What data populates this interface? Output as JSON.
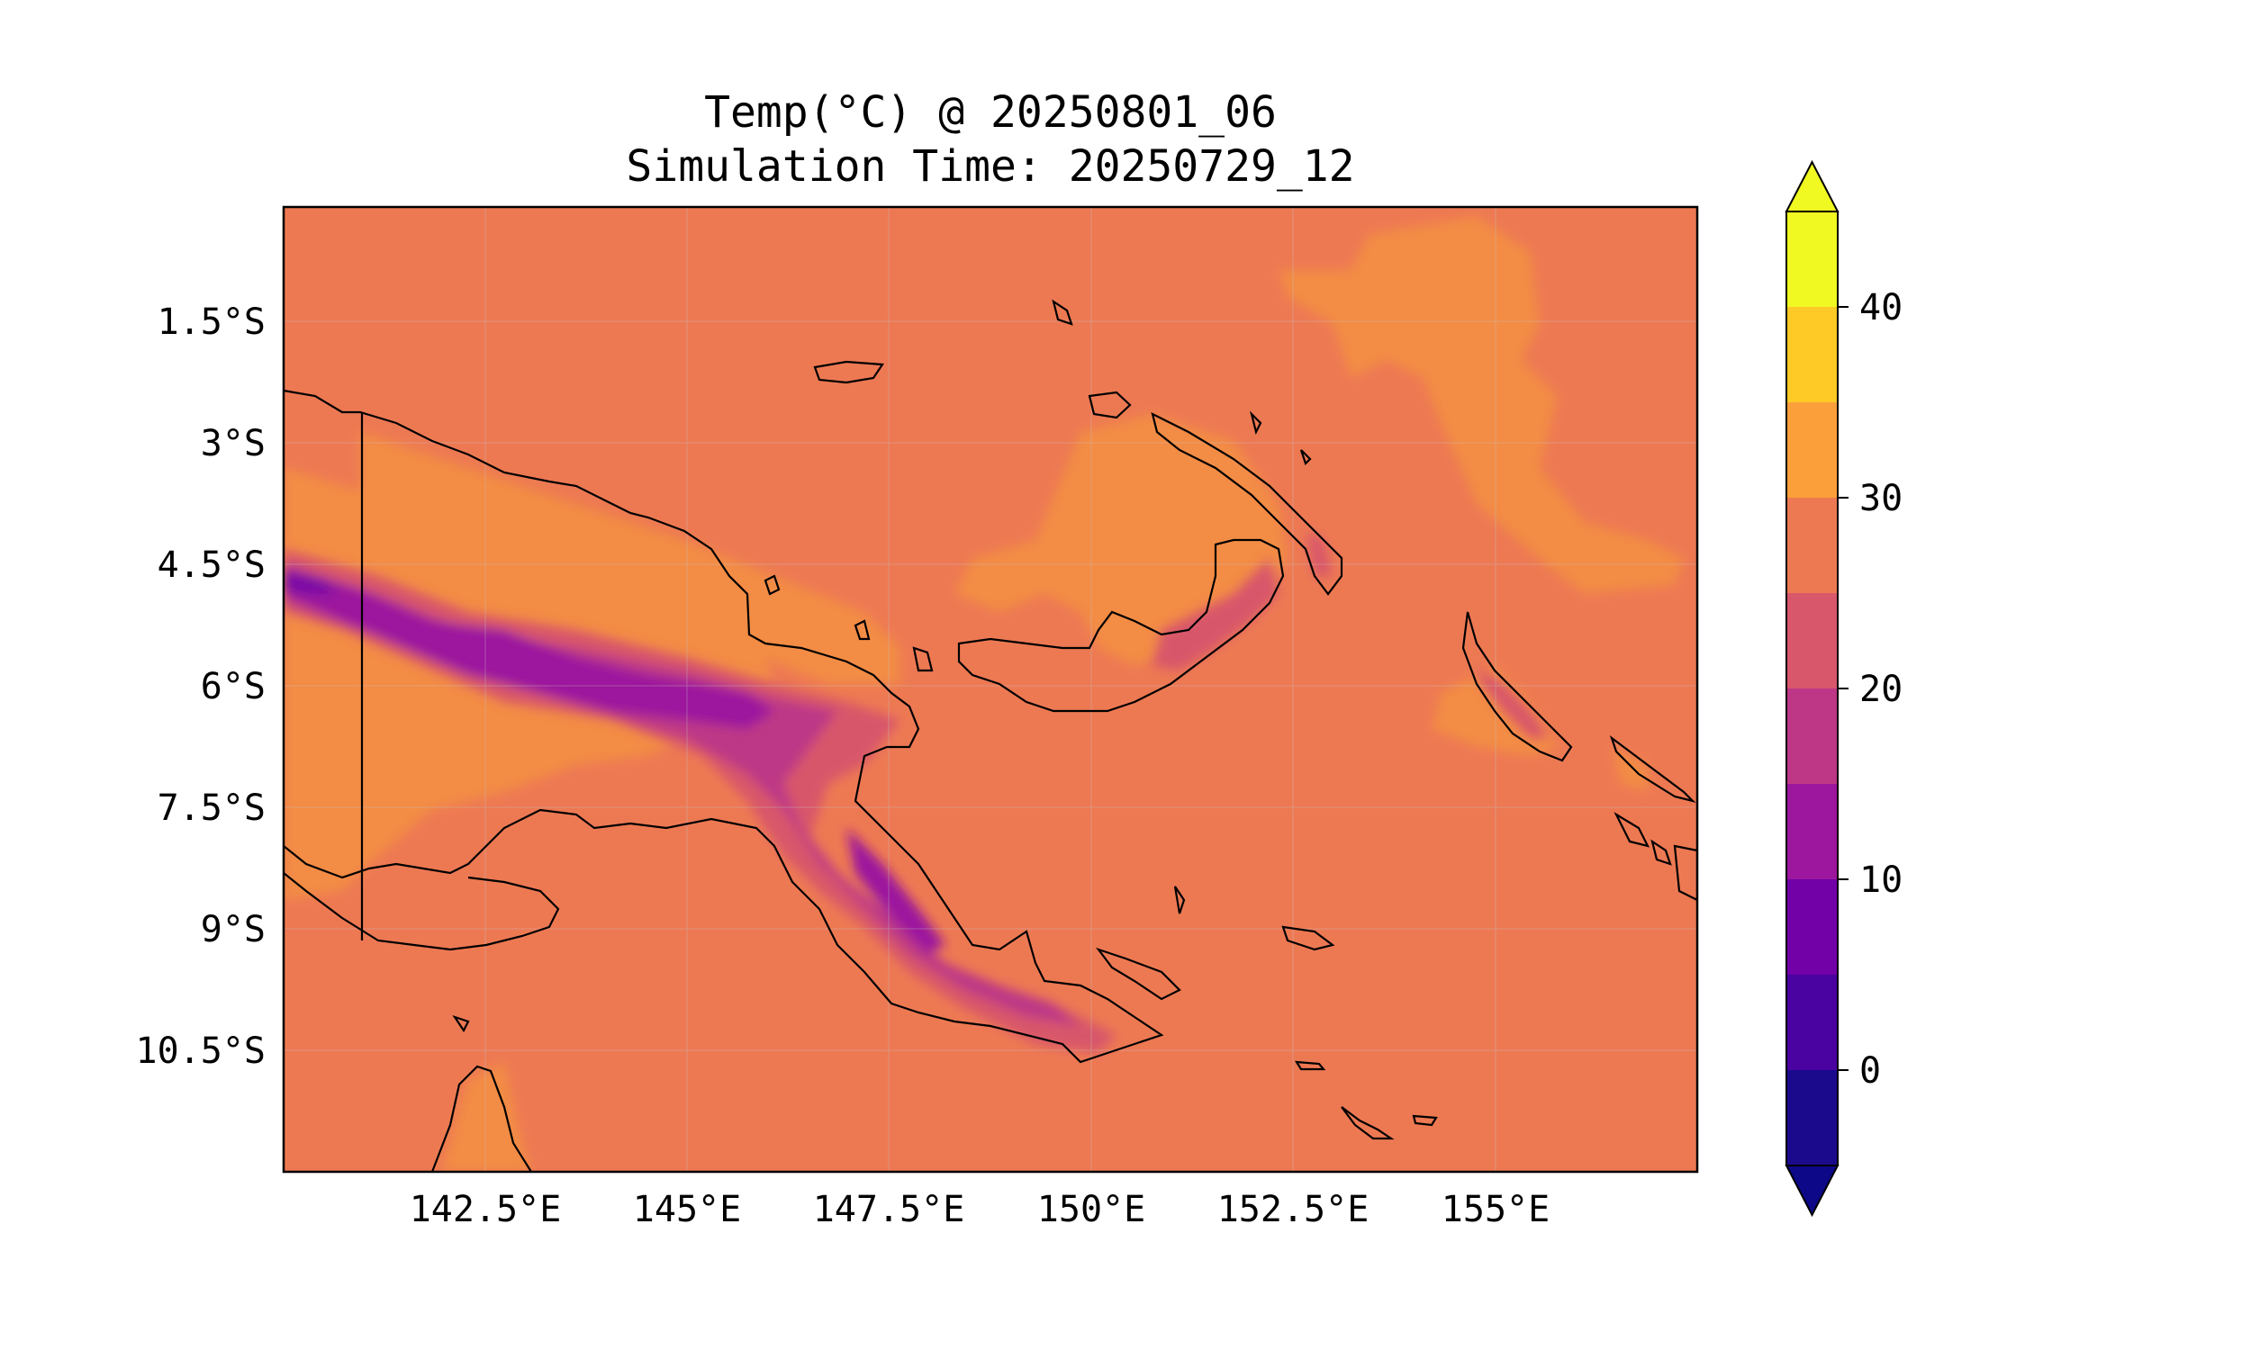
{
  "title": {
    "line1": "Temp(°C) @ 20250801_06",
    "line2": "Simulation Time: 20250729_12"
  },
  "chart_data": {
    "type": "heatmap",
    "variable": "Temp(°C)",
    "valid_time": "20250801_06",
    "simulation_time": "20250729_12",
    "lon_range": [
      140.0,
      157.5
    ],
    "lat_range": [
      -12.0,
      -0.1
    ],
    "x_ticks": [
      "142.5°E",
      "145°E",
      "147.5°E",
      "150°E",
      "152.5°E",
      "155°E"
    ],
    "x_tick_values": [
      142.5,
      145,
      147.5,
      150,
      152.5,
      155
    ],
    "y_ticks": [
      "1.5°S",
      "3°S",
      "4.5°S",
      "6°S",
      "7.5°S",
      "9°S",
      "10.5°S"
    ],
    "y_tick_values": [
      -1.5,
      -3,
      -4.5,
      -6,
      -7.5,
      -9,
      -10.5
    ],
    "colorbar": {
      "ticks": [
        "0",
        "10",
        "20",
        "30",
        "40"
      ],
      "tick_values": [
        0,
        10,
        20,
        30,
        40
      ],
      "range": [
        -5,
        45
      ],
      "levels": [
        -5,
        0,
        5,
        10,
        15,
        20,
        25,
        30,
        35,
        40,
        45
      ],
      "colors": [
        "#1b0a8c",
        "#4a02a0",
        "#7201a8",
        "#9c179e",
        "#bd3786",
        "#d8576b",
        "#ed7953",
        "#fb9f3a",
        "#fdca26",
        "#f0f921"
      ],
      "extend": "both",
      "under_color": "#0d0887",
      "over_color": "#f0f921"
    },
    "background_level_range": [
      25,
      30
    ],
    "grid": true
  }
}
